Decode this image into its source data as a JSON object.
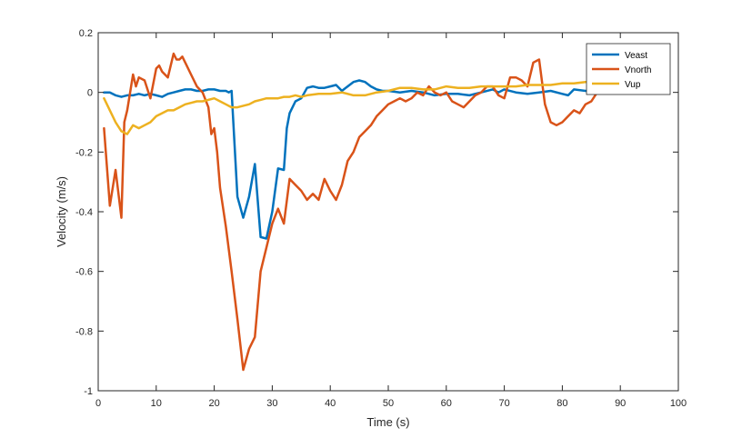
{
  "chart_data": {
    "type": "line",
    "title": "",
    "xlabel": "Time (s)",
    "ylabel": "Velocity (m/s)",
    "xlim": [
      0,
      100
    ],
    "ylim": [
      -1,
      0.2
    ],
    "xticks": [
      0,
      10,
      20,
      30,
      40,
      50,
      60,
      70,
      80,
      90,
      100
    ],
    "yticks": [
      -1,
      -0.8,
      -0.6,
      -0.4,
      -0.2,
      0,
      0.2
    ],
    "xtick_labels": [
      "0",
      "10",
      "20",
      "30",
      "40",
      "50",
      "60",
      "70",
      "80",
      "90",
      "100"
    ],
    "ytick_labels": [
      "-1",
      "-0.8",
      "-0.6",
      "-0.4",
      "-0.2",
      "0",
      "0.2"
    ],
    "grid": false,
    "legend_position": "top-right",
    "series": [
      {
        "name": "Veast",
        "color": "#0072BD",
        "x": [
          1,
          2,
          3,
          4,
          5,
          6,
          7,
          8,
          9,
          10,
          11,
          12,
          13,
          14,
          15,
          16,
          17,
          18,
          19,
          20,
          21,
          22,
          22.5,
          23,
          24,
          25,
          26,
          27,
          28,
          29,
          30,
          31,
          32,
          32.5,
          33,
          34,
          35,
          36,
          37,
          38,
          39,
          40,
          41,
          42,
          43,
          44,
          45,
          46,
          47,
          48,
          49,
          50,
          52,
          54,
          56,
          58,
          60,
          62,
          64,
          66,
          68,
          69,
          70,
          72,
          74,
          76,
          78,
          80,
          81,
          82,
          84,
          86,
          87
        ],
        "y": [
          0,
          0,
          -0.01,
          -0.015,
          -0.01,
          -0.01,
          -0.005,
          -0.01,
          -0.005,
          -0.01,
          -0.015,
          -0.005,
          0,
          0.005,
          0.01,
          0.01,
          0.005,
          0.005,
          0.01,
          0.01,
          0.005,
          0.005,
          0,
          0.005,
          -0.35,
          -0.42,
          -0.35,
          -0.24,
          -0.485,
          -0.49,
          -0.4,
          -0.255,
          -0.26,
          -0.12,
          -0.07,
          -0.03,
          -0.02,
          0.015,
          0.02,
          0.015,
          0.015,
          0.02,
          0.025,
          0.005,
          0.02,
          0.035,
          0.04,
          0.035,
          0.02,
          0.01,
          0.005,
          0.005,
          0,
          0.005,
          0,
          -0.01,
          -0.005,
          -0.005,
          -0.01,
          0,
          0.01,
          0,
          0.01,
          0,
          -0.005,
          0,
          0.005,
          -0.005,
          -0.01,
          0.01,
          0.005,
          0,
          0.01
        ]
      },
      {
        "name": "Vnorth",
        "color": "#D95319",
        "x": [
          1,
          2,
          3,
          4,
          4.5,
          5,
          6,
          6.5,
          7,
          8,
          9,
          10,
          10.5,
          11,
          12,
          13,
          13.5,
          14,
          14.5,
          15,
          16,
          17,
          18,
          19,
          19.5,
          20,
          20.5,
          21,
          22,
          23,
          24,
          25,
          26,
          27,
          28,
          29,
          30,
          31,
          32,
          33,
          34,
          35,
          36,
          37,
          38,
          39,
          40,
          41,
          42,
          43,
          44,
          45,
          46,
          47,
          48,
          49,
          50,
          51,
          52,
          53,
          54,
          55,
          56,
          57,
          58,
          59,
          60,
          61,
          62,
          63,
          64,
          65,
          66,
          67,
          68,
          69,
          70,
          71,
          72,
          73,
          74,
          75,
          76,
          77,
          78,
          79,
          80,
          81,
          82,
          83,
          84,
          85,
          86,
          87
        ],
        "y": [
          -0.12,
          -0.38,
          -0.26,
          -0.42,
          -0.1,
          -0.06,
          0.06,
          0.02,
          0.05,
          0.04,
          -0.02,
          0.08,
          0.09,
          0.07,
          0.05,
          0.13,
          0.11,
          0.11,
          0.12,
          0.1,
          0.06,
          0.02,
          0,
          -0.05,
          -0.14,
          -0.12,
          -0.2,
          -0.32,
          -0.45,
          -0.6,
          -0.76,
          -0.93,
          -0.86,
          -0.82,
          -0.6,
          -0.52,
          -0.44,
          -0.39,
          -0.44,
          -0.29,
          -0.31,
          -0.33,
          -0.36,
          -0.34,
          -0.36,
          -0.29,
          -0.33,
          -0.36,
          -0.31,
          -0.23,
          -0.2,
          -0.15,
          -0.13,
          -0.11,
          -0.08,
          -0.06,
          -0.04,
          -0.03,
          -0.02,
          -0.03,
          -0.02,
          0,
          -0.01,
          0.02,
          0,
          -0.01,
          0,
          -0.03,
          -0.04,
          -0.05,
          -0.03,
          -0.01,
          0,
          0.02,
          0.02,
          -0.01,
          -0.02,
          0.05,
          0.05,
          0.04,
          0.02,
          0.1,
          0.11,
          -0.04,
          -0.1,
          -0.11,
          -0.1,
          -0.08,
          -0.06,
          -0.07,
          -0.04,
          -0.03,
          0,
          0.02
        ]
      },
      {
        "name": "Vup",
        "color": "#EDB120",
        "x": [
          1,
          2,
          3,
          4,
          5,
          6,
          7,
          8,
          9,
          10,
          11,
          12,
          13,
          14,
          15,
          16,
          17,
          18,
          19,
          20,
          21,
          22,
          23,
          24,
          25,
          26,
          27,
          28,
          29,
          30,
          31,
          32,
          33,
          34,
          35,
          36,
          38,
          40,
          42,
          44,
          46,
          48,
          50,
          52,
          54,
          56,
          58,
          60,
          62,
          64,
          66,
          68,
          70,
          72,
          74,
          76,
          78,
          80,
          82,
          84,
          86,
          87
        ],
        "y": [
          -0.02,
          -0.06,
          -0.1,
          -0.13,
          -0.14,
          -0.11,
          -0.12,
          -0.11,
          -0.1,
          -0.08,
          -0.07,
          -0.06,
          -0.06,
          -0.05,
          -0.04,
          -0.035,
          -0.03,
          -0.03,
          -0.025,
          -0.02,
          -0.03,
          -0.04,
          -0.05,
          -0.05,
          -0.045,
          -0.04,
          -0.03,
          -0.025,
          -0.02,
          -0.02,
          -0.02,
          -0.015,
          -0.015,
          -0.01,
          -0.015,
          -0.01,
          -0.005,
          -0.005,
          0,
          -0.01,
          -0.01,
          0,
          0.005,
          0.015,
          0.015,
          0.01,
          0.01,
          0.02,
          0.015,
          0.015,
          0.02,
          0.02,
          0.02,
          0.02,
          0.025,
          0.025,
          0.025,
          0.03,
          0.03,
          0.035,
          0.035,
          0.035
        ]
      }
    ]
  }
}
